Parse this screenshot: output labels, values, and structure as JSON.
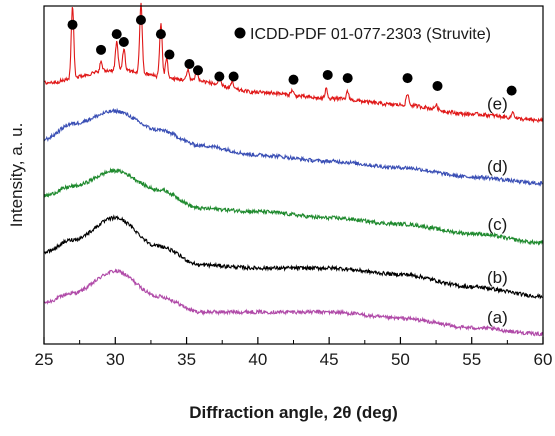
{
  "chart_data": {
    "type": "line",
    "xlabel": "Diffraction angle, 2θ (deg)",
    "ylabel": "Intensity, a. u.",
    "xlim": [
      25,
      60
    ],
    "x_ticks": [
      "25",
      "30",
      "35",
      "40",
      "45",
      "50",
      "55",
      "60"
    ],
    "y_ticks_labeled": false,
    "grid": false,
    "legend": {
      "placement": "top-right",
      "marker": "filled-circle",
      "label": "ICDD-PDF 01-077-2303 (Struvite)",
      "color": "#000000"
    },
    "series": [
      {
        "name": "(a)",
        "color": "#b04aa8",
        "intensity_at": [
          [
            25,
            0.1
          ],
          [
            27,
            0.13
          ],
          [
            30,
            0.2
          ],
          [
            33,
            0.12
          ],
          [
            36,
            0.07
          ],
          [
            40,
            0.07
          ],
          [
            45,
            0.07
          ],
          [
            50,
            0.05
          ],
          [
            55,
            0.02
          ],
          [
            60,
            0.0
          ]
        ]
      },
      {
        "name": "(b)",
        "color": "#000000",
        "intensity_at": [
          [
            25,
            0.26
          ],
          [
            27,
            0.3
          ],
          [
            30,
            0.37
          ],
          [
            33,
            0.28
          ],
          [
            36,
            0.22
          ],
          [
            40,
            0.21
          ],
          [
            45,
            0.21
          ],
          [
            50,
            0.19
          ],
          [
            55,
            0.15
          ],
          [
            60,
            0.12
          ]
        ]
      },
      {
        "name": "(c)",
        "color": "#1f8a2e",
        "intensity_at": [
          [
            25,
            0.44
          ],
          [
            27,
            0.47
          ],
          [
            30,
            0.52
          ],
          [
            33,
            0.46
          ],
          [
            36,
            0.4
          ],
          [
            40,
            0.39
          ],
          [
            45,
            0.37
          ],
          [
            50,
            0.35
          ],
          [
            55,
            0.32
          ],
          [
            60,
            0.29
          ]
        ]
      },
      {
        "name": "(d)",
        "color": "#3a4fb5",
        "intensity_at": [
          [
            25,
            0.62
          ],
          [
            27,
            0.67
          ],
          [
            30,
            0.71
          ],
          [
            33,
            0.65
          ],
          [
            36,
            0.6
          ],
          [
            40,
            0.57
          ],
          [
            45,
            0.55
          ],
          [
            50,
            0.53
          ],
          [
            55,
            0.5
          ],
          [
            60,
            0.48
          ]
        ]
      },
      {
        "name": "(e)",
        "color": "#e01818",
        "intensity_at": [
          [
            25,
            0.8
          ],
          [
            30,
            0.84
          ],
          [
            35,
            0.81
          ],
          [
            40,
            0.77
          ],
          [
            45,
            0.75
          ],
          [
            50,
            0.73
          ],
          [
            55,
            0.7
          ],
          [
            60,
            0.68
          ]
        ]
      }
    ],
    "peaks_e": [
      {
        "x": 27.0,
        "height": 0.23
      },
      {
        "x": 29.0,
        "height": 0.03
      },
      {
        "x": 30.1,
        "height": 0.09
      },
      {
        "x": 30.6,
        "height": 0.07
      },
      {
        "x": 31.8,
        "height": 0.22
      },
      {
        "x": 33.2,
        "height": 0.17
      },
      {
        "x": 33.6,
        "height": 0.06
      },
      {
        "x": 35.1,
        "height": 0.03
      },
      {
        "x": 35.7,
        "height": 0.03
      },
      {
        "x": 37.3,
        "height": 0.02
      },
      {
        "x": 38.2,
        "height": 0.02
      },
      {
        "x": 42.4,
        "height": 0.015
      },
      {
        "x": 44.8,
        "height": 0.03
      },
      {
        "x": 46.3,
        "height": 0.025
      },
      {
        "x": 50.5,
        "height": 0.035
      },
      {
        "x": 52.5,
        "height": 0.015
      },
      {
        "x": 57.9,
        "height": 0.02
      }
    ],
    "reference_markers": [
      {
        "x": 27.0,
        "level": 0.985
      },
      {
        "x": 29.0,
        "level": 0.905
      },
      {
        "x": 30.1,
        "level": 0.955
      },
      {
        "x": 30.6,
        "level": 0.93
      },
      {
        "x": 31.8,
        "level": 1.0
      },
      {
        "x": 33.2,
        "level": 0.955
      },
      {
        "x": 33.8,
        "level": 0.89
      },
      {
        "x": 35.2,
        "level": 0.86
      },
      {
        "x": 35.8,
        "level": 0.84
      },
      {
        "x": 37.3,
        "level": 0.82
      },
      {
        "x": 38.3,
        "level": 0.82
      },
      {
        "x": 42.5,
        "level": 0.81
      },
      {
        "x": 44.9,
        "level": 0.825
      },
      {
        "x": 46.3,
        "level": 0.815
      },
      {
        "x": 50.5,
        "level": 0.815
      },
      {
        "x": 52.6,
        "level": 0.79
      },
      {
        "x": 57.8,
        "level": 0.775
      }
    ]
  }
}
